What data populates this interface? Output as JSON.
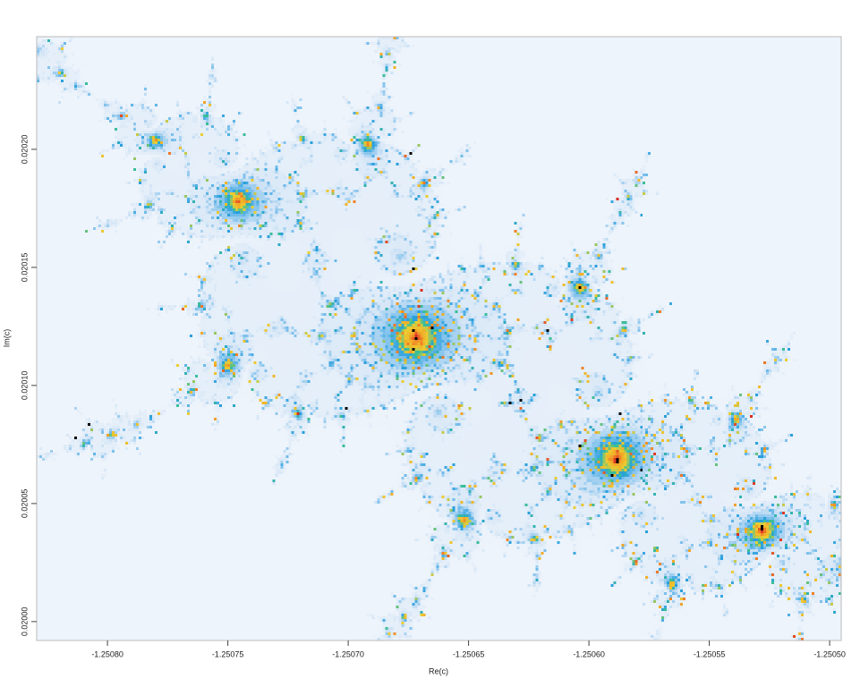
{
  "chart_data": {
    "type": "image",
    "x_label": "Re(c)",
    "y_label": "Im(c)",
    "xlim": [
      -1.2508294,
      -1.2504952
    ],
    "ylim": [
      0.019992,
      0.0202477
    ],
    "xticks": [
      {
        "value": -1.2508,
        "label": "-1.25080"
      },
      -1.25075,
      {
        "value": -1.2507,
        "label": "-1.25070"
      },
      -1.25065,
      {
        "value": -1.2506,
        "label": "-1.25060"
      },
      -1.25055,
      {
        "value": -1.2505,
        "label": "-1.25050"
      }
    ],
    "yticks": [
      {
        "value": 0.02,
        "label": "0.02000"
      },
      0.02005,
      {
        "value": 0.0201,
        "label": "0.02010"
      },
      0.02015,
      {
        "value": 0.0202,
        "label": "0.02020"
      }
    ]
  }
}
